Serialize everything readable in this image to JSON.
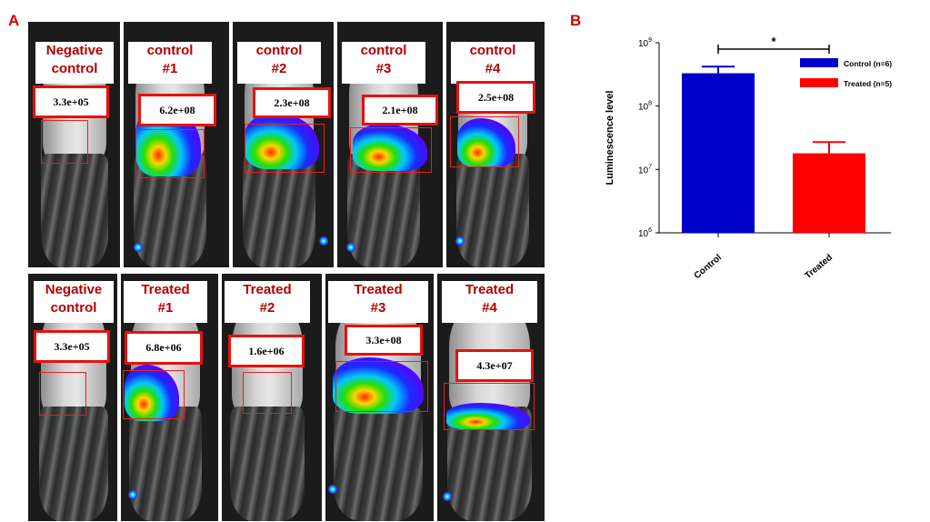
{
  "panel_a": {
    "letter": "A",
    "top_row": [
      {
        "line1": "Negative",
        "line2": "control",
        "value": "3.3e+05"
      },
      {
        "line1": "control",
        "line2": "#1",
        "value": "6.2e+08"
      },
      {
        "line1": "control",
        "line2": "#2",
        "value": "2.3e+08"
      },
      {
        "line1": "control",
        "line2": "#3",
        "value": "2.1e+08"
      },
      {
        "line1": "control",
        "line2": "#4",
        "value": "2.5e+08"
      }
    ],
    "bottom_row": [
      {
        "line1": "Negative",
        "line2": "control",
        "value": "3.3e+05"
      },
      {
        "line1": "Treated",
        "line2": "#1",
        "value": "6.8e+06"
      },
      {
        "line1": "Treated",
        "line2": "#2",
        "value": "1.6e+06"
      },
      {
        "line1": "Treated",
        "line2": "#3",
        "value": "3.3e+08"
      },
      {
        "line1": "Treated",
        "line2": "#4",
        "value": "4.3e+07"
      }
    ]
  },
  "panel_b": {
    "letter": "B"
  },
  "chart_data": {
    "type": "bar",
    "categories": [
      "Control",
      "Treated"
    ],
    "values": [
      330000000,
      18000000
    ],
    "error_upper": [
      420000000,
      27000000
    ],
    "colors": [
      "#0000cc",
      "#ff0000"
    ],
    "yscale": "log",
    "ylim": [
      1000000,
      1000000000
    ],
    "ytick_base": "10",
    "yticks": [
      {
        "exp": "6"
      },
      {
        "exp": "7"
      },
      {
        "exp": "8"
      },
      {
        "exp": "9"
      }
    ],
    "ylabel": "Luminescence level",
    "legend": [
      {
        "name": "Control (n=6)",
        "color": "#0000cc"
      },
      {
        "name": "Treated (n=5)",
        "color": "#ff0000"
      }
    ],
    "legend_position": "top-right",
    "significance": "*"
  }
}
